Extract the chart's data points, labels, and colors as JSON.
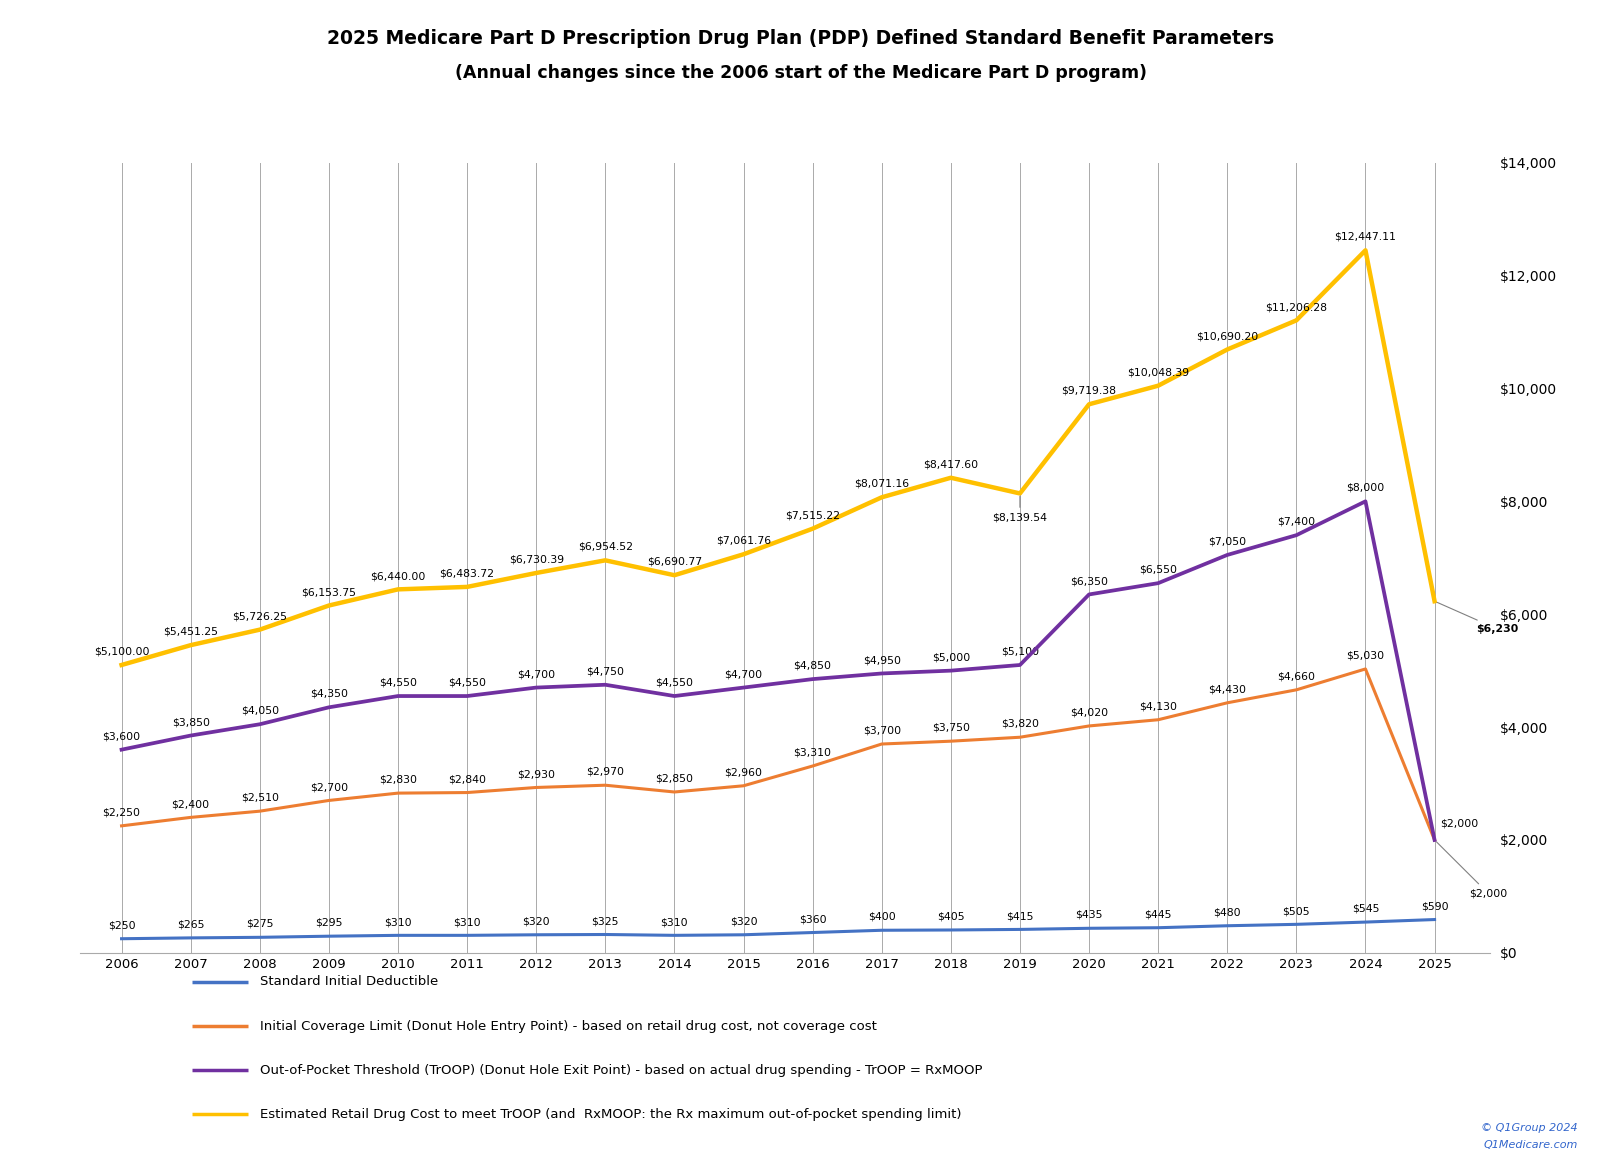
{
  "title_line1": "2025 Medicare Part D Prescription Drug Plan (PDP) Defined Standard Benefit Parameters",
  "title_line2": "(Annual changes since the 2006 start of the Medicare Part D program)",
  "years": [
    2006,
    2007,
    2008,
    2009,
    2010,
    2011,
    2012,
    2013,
    2014,
    2015,
    2016,
    2017,
    2018,
    2019,
    2020,
    2021,
    2022,
    2023,
    2024,
    2025
  ],
  "deductible": [
    250,
    265,
    275,
    295,
    310,
    310,
    320,
    325,
    310,
    320,
    360,
    400,
    405,
    415,
    435,
    445,
    480,
    505,
    545,
    590
  ],
  "initial_coverage_limit": [
    2250,
    2400,
    2510,
    2700,
    2830,
    2840,
    2930,
    2970,
    2850,
    2960,
    3310,
    3700,
    3750,
    3820,
    4020,
    4130,
    4430,
    4660,
    5030,
    2000
  ],
  "troop": [
    3600,
    3850,
    4050,
    4350,
    4550,
    4550,
    4700,
    4750,
    4550,
    4700,
    4850,
    4950,
    5000,
    5100,
    6350,
    6550,
    7050,
    7400,
    8000,
    2000
  ],
  "estimated_retail": [
    5100,
    5451.25,
    5726.25,
    6153.75,
    6440.0,
    6483.72,
    6730.39,
    6954.52,
    6690.77,
    7061.76,
    7515.22,
    8071.16,
    8417.6,
    8139.54,
    9719.38,
    10048.39,
    10690.2,
    11206.28,
    12447.11,
    6230
  ],
  "deductible_color": "#4472C4",
  "icl_color": "#ED7D31",
  "troop_color": "#7030A0",
  "retail_color": "#FFC000",
  "background_color": "#FFFFFF",
  "grid_color": "#AAAAAA",
  "border_color": "#2E5FA3",
  "ylim_min": 0,
  "ylim_max": 14000,
  "deductible_labels": [
    "$250",
    "$265",
    "$275",
    "$295",
    "$310",
    "$310",
    "$320",
    "$325",
    "$310",
    "$320",
    "$360",
    "$400",
    "$405",
    "$415",
    "$435",
    "$445",
    "$480",
    "$505",
    "$545",
    "$590"
  ],
  "icl_labels": [
    "$2,250",
    "$2,400",
    "$2,510",
    "$2,700",
    "$2,830",
    "$2,840",
    "$2,930",
    "$2,970",
    "$2,850",
    "$2,960",
    "$3,310",
    "$3,700",
    "$3,750",
    "$3,820",
    "$4,020",
    "$4,130",
    "$4,430",
    "$4,660",
    "$5,030",
    "$2,000"
  ],
  "troop_labels": [
    "$3,600",
    "$3,850",
    "$4,050",
    "$4,350",
    "$4,550",
    "$4,550",
    "$4,700",
    "$4,750",
    "$4,550",
    "$4,700",
    "$4,850",
    "$4,950",
    "$5,000",
    "$5,100",
    "$6,350",
    "$6,550",
    "$7,050",
    "$7,400",
    "$8,000",
    "$2,000"
  ],
  "retail_labels": [
    "$5,100.00",
    "$5,451.25",
    "$5,726.25",
    "$6,153.75",
    "$6,440.00",
    "$6,483.72",
    "$6,730.39",
    "$6,954.52",
    "$6,690.77",
    "$7,061.76",
    "$7,515.22",
    "$8,071.16",
    "$8,417.60",
    "$8,139.54",
    "$9,719.38",
    "$10,048.39",
    "$10,690.20",
    "$11,206.28",
    "$12,447.11",
    "$6,230"
  ],
  "legend_labels": [
    "Standard Initial Deductible",
    "Initial Coverage Limit (Donut Hole Entry Point) - based on retail drug cost, not coverage cost",
    "Out-of-Pocket Threshold (TrOOP) (Donut Hole Exit Point) - based on actual drug spending - TrOOP = RxMOOP",
    "Estimated Retail Drug Cost to meet TrOOP (and  RxMOOP: the Rx maximum out-of-pocket spending limit)"
  ],
  "watermark_line1": "© Q1Group 2024",
  "watermark_line2": "Q1Medicare.com"
}
